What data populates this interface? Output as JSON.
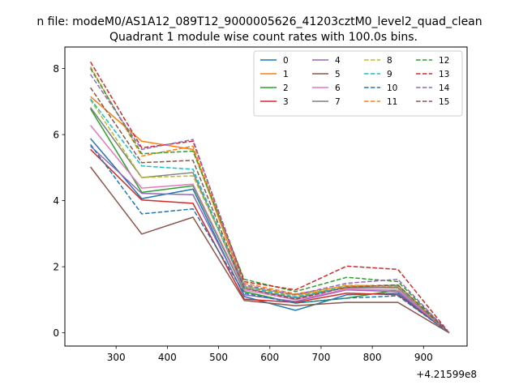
{
  "figure": {
    "suptitle": "n file: modeM0/AS1A12_089T12_9000005626_41203cztM0_level2_quad_clean",
    "offset_label": "+4.21599e8"
  },
  "chart_data": {
    "type": "line",
    "title": "Quadrant 1 module wise count rates with 100.0s bins.",
    "xlabel": "",
    "ylabel": "",
    "xlim": [
      200,
      985
    ],
    "ylim": [
      -0.4,
      8.65
    ],
    "x_ticks": [
      300,
      400,
      500,
      600,
      700,
      800,
      900
    ],
    "y_ticks": [
      0,
      2,
      4,
      6,
      8
    ],
    "x": [
      250,
      350,
      450,
      550,
      650,
      750,
      850,
      950
    ],
    "grid": false,
    "legend_position": "top-right",
    "legend_columns": 4,
    "series": [
      {
        "name": "0",
        "color": "#1f77b4",
        "dash": "solid",
        "values": [
          5.88,
          4.06,
          4.35,
          1.1,
          0.68,
          1.15,
          1.2,
          0.0
        ]
      },
      {
        "name": "1",
        "color": "#ff7f0e",
        "dash": "solid",
        "values": [
          7.15,
          5.8,
          5.55,
          1.4,
          1.15,
          1.35,
          1.38,
          0.0
        ]
      },
      {
        "name": "2",
        "color": "#2ca02c",
        "dash": "solid",
        "values": [
          6.78,
          4.25,
          4.45,
          1.25,
          0.9,
          1.05,
          1.3,
          0.0
        ]
      },
      {
        "name": "3",
        "color": "#d62728",
        "dash": "solid",
        "values": [
          5.55,
          4.02,
          3.92,
          1.02,
          0.92,
          1.2,
          1.15,
          0.0
        ]
      },
      {
        "name": "4",
        "color": "#9467bd",
        "dash": "solid",
        "values": [
          5.65,
          4.22,
          4.18,
          1.15,
          0.95,
          1.3,
          1.25,
          0.0
        ]
      },
      {
        "name": "5",
        "color": "#8c564b",
        "dash": "solid",
        "values": [
          5.02,
          2.99,
          3.5,
          0.98,
          0.82,
          0.92,
          0.92,
          0.0
        ]
      },
      {
        "name": "6",
        "color": "#e377c2",
        "dash": "solid",
        "values": [
          6.28,
          4.38,
          4.5,
          1.3,
          1.0,
          1.32,
          1.3,
          0.0
        ]
      },
      {
        "name": "7",
        "color": "#7f7f7f",
        "dash": "solid",
        "values": [
          6.82,
          4.7,
          4.85,
          1.35,
          1.05,
          1.38,
          1.36,
          0.0
        ]
      },
      {
        "name": "8",
        "color": "#bcbd22",
        "dash": "dashed",
        "values": [
          7.05,
          4.7,
          4.75,
          1.45,
          1.1,
          1.45,
          1.4,
          0.0
        ]
      },
      {
        "name": "9",
        "color": "#17becf",
        "dash": "dashed",
        "values": [
          7.08,
          5.05,
          4.95,
          1.4,
          1.08,
          1.4,
          1.42,
          0.0
        ]
      },
      {
        "name": "10",
        "color": "#1f77b4",
        "dash": "dashed",
        "values": [
          5.7,
          3.6,
          3.75,
          1.2,
          0.9,
          1.05,
          1.12,
          0.0
        ]
      },
      {
        "name": "11",
        "color": "#ff7f0e",
        "dash": "dashed",
        "values": [
          8.05,
          5.35,
          5.65,
          1.5,
          1.18,
          1.42,
          1.45,
          0.0
        ]
      },
      {
        "name": "12",
        "color": "#2ca02c",
        "dash": "dashed",
        "values": [
          8.0,
          5.42,
          5.5,
          1.62,
          1.25,
          1.68,
          1.55,
          0.0
        ]
      },
      {
        "name": "13",
        "color": "#d62728",
        "dash": "dashed",
        "values": [
          8.2,
          5.6,
          5.8,
          1.55,
          1.3,
          2.02,
          1.92,
          0.0
        ]
      },
      {
        "name": "14",
        "color": "#9467bd",
        "dash": "dashed",
        "values": [
          7.82,
          5.55,
          5.85,
          1.45,
          1.15,
          1.5,
          1.62,
          0.0
        ]
      },
      {
        "name": "15",
        "color": "#8c564b",
        "dash": "dashed",
        "values": [
          7.42,
          5.15,
          5.22,
          1.35,
          1.02,
          1.38,
          1.45,
          0.0
        ]
      }
    ]
  }
}
